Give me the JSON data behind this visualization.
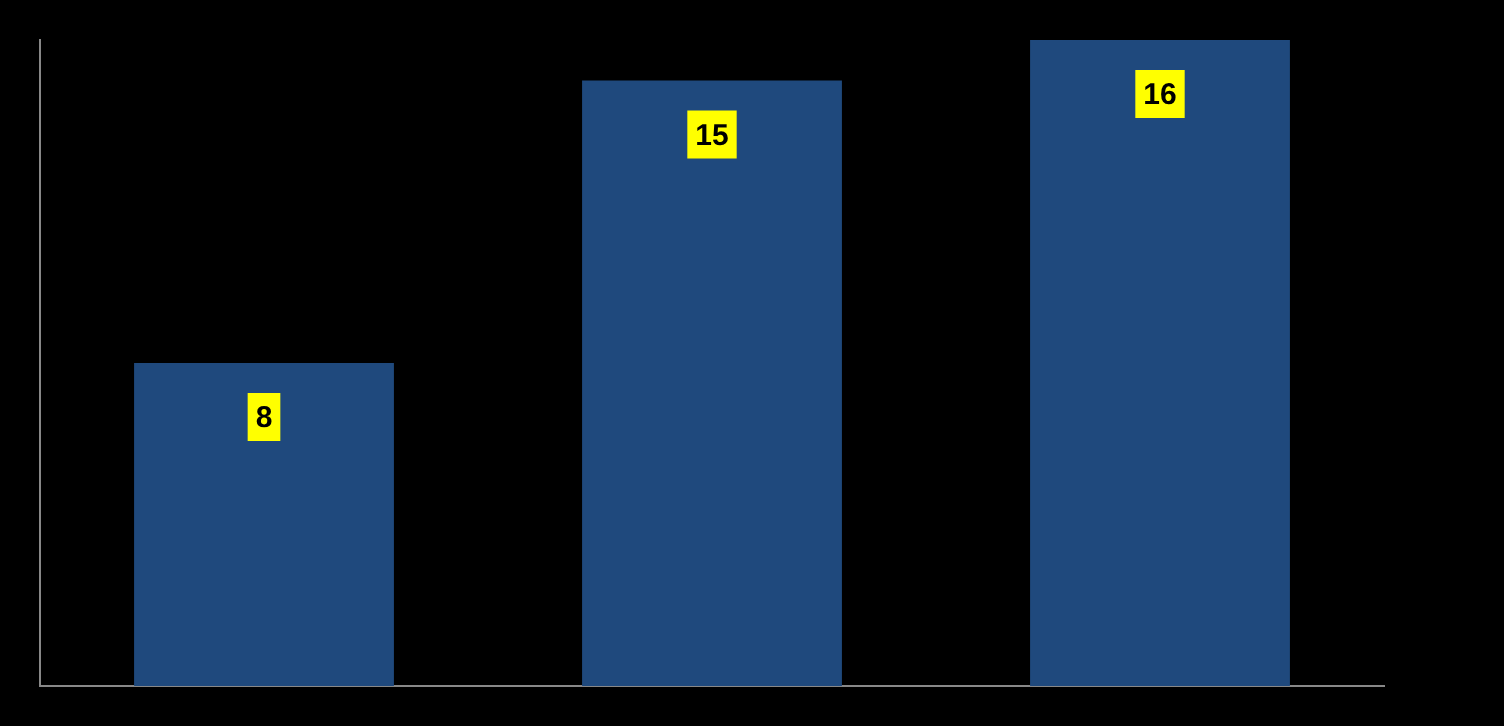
{
  "chart_data": {
    "type": "bar",
    "categories": [
      null,
      null,
      null
    ],
    "values": [
      8,
      15,
      16
    ],
    "color": "#1f497d",
    "data_labels": true,
    "tick_labels": false
  }
}
